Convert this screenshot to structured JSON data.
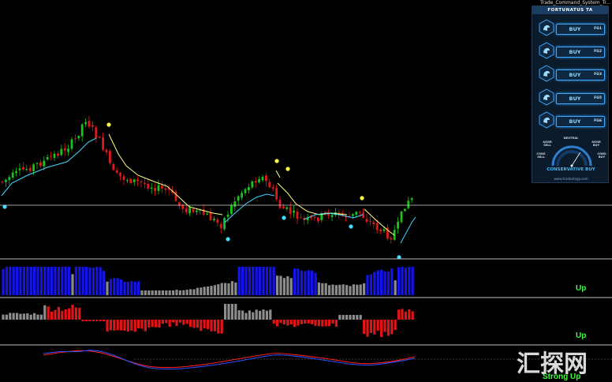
{
  "window_title": "Trade_Command_System_Tr...",
  "panel": {
    "title": "FORTUNATUS TA",
    "signals": [
      {
        "label": "BUY",
        "timeframe": "FG1"
      },
      {
        "label": "BUY",
        "timeframe": "FG2"
      },
      {
        "label": "BUY",
        "timeframe": "FG3"
      },
      {
        "label": "BUY",
        "timeframe": "FG5"
      },
      {
        "label": "BUY",
        "timeframe": "FG6"
      }
    ],
    "gauge": {
      "neutral": "NEUTRAL",
      "agg_sell": "AGGR SELL",
      "agg_buy": "AGGR BUY",
      "cons_sell": "CONS SELL",
      "cons_buy": "CONS BUY",
      "value": 0.68
    },
    "verdict": "CONSERVATIVE BUY",
    "site": "www.tradeology.com"
  },
  "indicators": {
    "ind1_status": "Up",
    "ind2_status": "Up",
    "ind3_status": "Strong Up"
  },
  "watermark": "汇探网",
  "colors": {
    "bull": "#18c418",
    "bear": "#e01818",
    "ma": "#ffff80",
    "signal_ma": "#40d8ff",
    "hist_blue": "#1414e8",
    "hist_gray": "#8c8c8c",
    "hist_red": "#e01414",
    "osc_red": "#ff2020",
    "osc_blue": "#3050ff",
    "status_green": "#39ff39"
  }
}
